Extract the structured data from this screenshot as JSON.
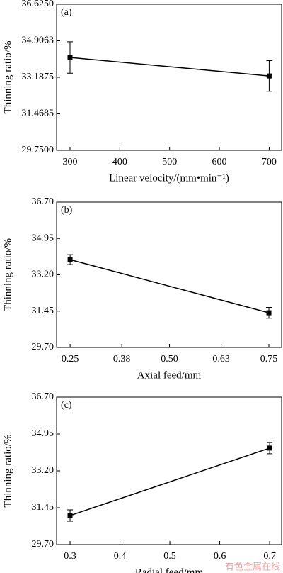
{
  "chart_data": [
    {
      "type": "line",
      "panel_label": "(a)",
      "x_label": "Linear velocity/(mm•min⁻¹)",
      "y_label": "Thinning ratio/%",
      "x": [
        300,
        700
      ],
      "values": [
        34.12,
        33.25
      ],
      "errors": [
        0.74,
        0.72
      ],
      "color": "#000000",
      "xlim": [
        273,
        725
      ],
      "xticks": [
        300,
        400,
        500,
        600,
        700
      ],
      "ylim": [
        29.75,
        36.625
      ],
      "yticks": [
        {
          "value": 29.75,
          "label": "29.7500"
        },
        31.4685,
        33.1875,
        34.9063,
        {
          "value": 36.625,
          "label": "36.6250"
        }
      ]
    },
    {
      "type": "line",
      "panel_label": "(b)",
      "x_label": "Axial feed/mm",
      "y_label": "Thinning ratio/%",
      "x": [
        0.25,
        0.75
      ],
      "values": [
        33.93,
        31.37
      ],
      "errors": [
        0.24,
        0.26
      ],
      "color": "#000000",
      "xlim": [
        0.216,
        0.782
      ],
      "xticks": [
        0.25,
        0.38,
        {
          "value": 0.5,
          "label": "0.50"
        },
        0.63,
        0.75
      ],
      "ylim": [
        29.7,
        36.7
      ],
      "yticks": [
        {
          "value": 29.7,
          "label": "29.70"
        },
        31.45,
        {
          "value": 33.2,
          "label": "33.20"
        },
        34.95,
        {
          "value": 36.7,
          "label": "36.70"
        }
      ]
    },
    {
      "type": "line",
      "panel_label": "(c)",
      "x_label": "Radial feed/mm",
      "y_label": "Thinning ratio/%",
      "x": [
        0.3,
        0.7
      ],
      "values": [
        31.08,
        34.28
      ],
      "errors": [
        0.27,
        0.27
      ],
      "color": "#000000",
      "xlim": [
        0.273,
        0.724
      ],
      "xticks": [
        0.3,
        0.4,
        0.5,
        0.6,
        0.7
      ],
      "ylim": [
        29.7,
        36.7
      ],
      "yticks": [
        {
          "value": 29.7,
          "label": "29.70"
        },
        31.45,
        {
          "value": 33.2,
          "label": "33.20"
        },
        34.95,
        {
          "value": 36.7,
          "label": "36.70"
        }
      ]
    }
  ],
  "watermark": "有色金属在线"
}
